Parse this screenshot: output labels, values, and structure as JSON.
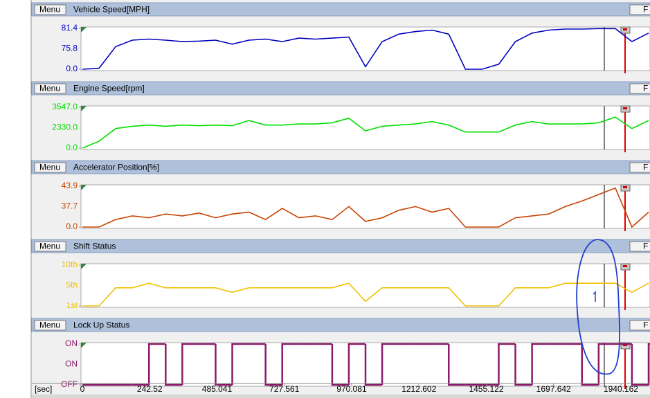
{
  "x_axis": {
    "label": "[sec]",
    "xlim": [
      0,
      2045
    ],
    "xticks": [
      0,
      242.52,
      485.041,
      727.561,
      970.081,
      1212.602,
      1455.122,
      1697.642,
      1940.162
    ],
    "x": [
      0,
      60,
      120,
      180,
      240,
      300,
      360,
      420,
      480,
      540,
      600,
      660,
      720,
      780,
      840,
      900,
      960,
      1020,
      1080,
      1140,
      1200,
      1260,
      1320,
      1380,
      1440,
      1500,
      1560,
      1620,
      1680,
      1740,
      1800,
      1860,
      1920,
      1980,
      2040
    ]
  },
  "chart_data": [
    {
      "type": "line",
      "title": "Vehicle Speed[MPH]",
      "menu_label": "Menu",
      "button_label": "F",
      "color": "#0000c0",
      "ylim": [
        0,
        81.4
      ],
      "yticks": [
        {
          "value": 0,
          "label": "0.0"
        },
        81.4
      ],
      "cursor_value": 75.8,
      "values": [
        0,
        2,
        45,
        58,
        60,
        58,
        55,
        56,
        58,
        50,
        58,
        60,
        55,
        62,
        60,
        62,
        64,
        5,
        55,
        70,
        75,
        78,
        70,
        0,
        0,
        10,
        55,
        72,
        78,
        80,
        80,
        81,
        81,
        55,
        72
      ]
    },
    {
      "type": "line",
      "title": "Engine Speed[rpm]",
      "menu_label": "Menu",
      "button_label": "F",
      "color": "#00e000",
      "ylim": [
        0,
        3547
      ],
      "yticks": [
        {
          "value": 0,
          "label": "0.0"
        },
        {
          "value": 3547,
          "label": "3547.0"
        }
      ],
      "cursor_value": {
        "value": 2330,
        "label": "2330.0"
      },
      "values": [
        0,
        600,
        1700,
        1900,
        2000,
        1900,
        2000,
        1950,
        2000,
        1950,
        2400,
        2000,
        2000,
        2100,
        2100,
        2200,
        2600,
        1500,
        1900,
        2000,
        2100,
        2300,
        2000,
        1400,
        1400,
        1400,
        2000,
        2300,
        2100,
        2100,
        2100,
        2200,
        2700,
        1700,
        2400
      ]
    },
    {
      "type": "line",
      "title": "Accelerator Position[%]",
      "menu_label": "Menu",
      "button_label": "F",
      "color": "#c84000",
      "ylim": [
        0,
        43.9
      ],
      "yticks": [
        {
          "value": 0,
          "label": "0.0"
        },
        43.9
      ],
      "cursor_value": 37.7,
      "values": [
        0,
        0,
        8,
        12,
        10,
        14,
        12,
        15,
        10,
        14,
        16,
        8,
        20,
        10,
        12,
        8,
        22,
        6,
        10,
        18,
        22,
        16,
        20,
        0,
        0,
        0,
        10,
        12,
        14,
        22,
        28,
        35,
        42,
        0,
        16
      ]
    },
    {
      "type": "line",
      "title": "Shift Status",
      "menu_label": "Menu",
      "button_label": "F",
      "color": "#f0c000",
      "ylim": [
        1,
        10
      ],
      "yticks": [
        {
          "value": 1,
          "label": "1st"
        },
        {
          "value": 10,
          "label": "10th"
        }
      ],
      "cursor_value": {
        "value": 5,
        "label": "5th"
      },
      "values": [
        1,
        1,
        5,
        5,
        6,
        5,
        5,
        5,
        5,
        4,
        5,
        5,
        5,
        5,
        5,
        5,
        6,
        2,
        5,
        5,
        5,
        5,
        5,
        1,
        1,
        1,
        5,
        5,
        5,
        6,
        6,
        6,
        6,
        4,
        6
      ]
    },
    {
      "type": "step",
      "title": "Lock Up Status",
      "menu_label": "Menu",
      "button_label": "F",
      "color": "#8b1a6a",
      "ylim": [
        0,
        1
      ],
      "yticks": [
        {
          "value": 0,
          "label": "OFF"
        },
        {
          "value": 1,
          "label": "ON"
        }
      ],
      "cursor_value": {
        "value": 1,
        "label": "ON"
      },
      "values": [
        0,
        0,
        0,
        0,
        1,
        0,
        1,
        1,
        0,
        1,
        1,
        0,
        1,
        1,
        1,
        0,
        1,
        0,
        1,
        1,
        1,
        1,
        0,
        0,
        0,
        1,
        0,
        1,
        1,
        1,
        0,
        1,
        1,
        0,
        1
      ]
    }
  ]
}
